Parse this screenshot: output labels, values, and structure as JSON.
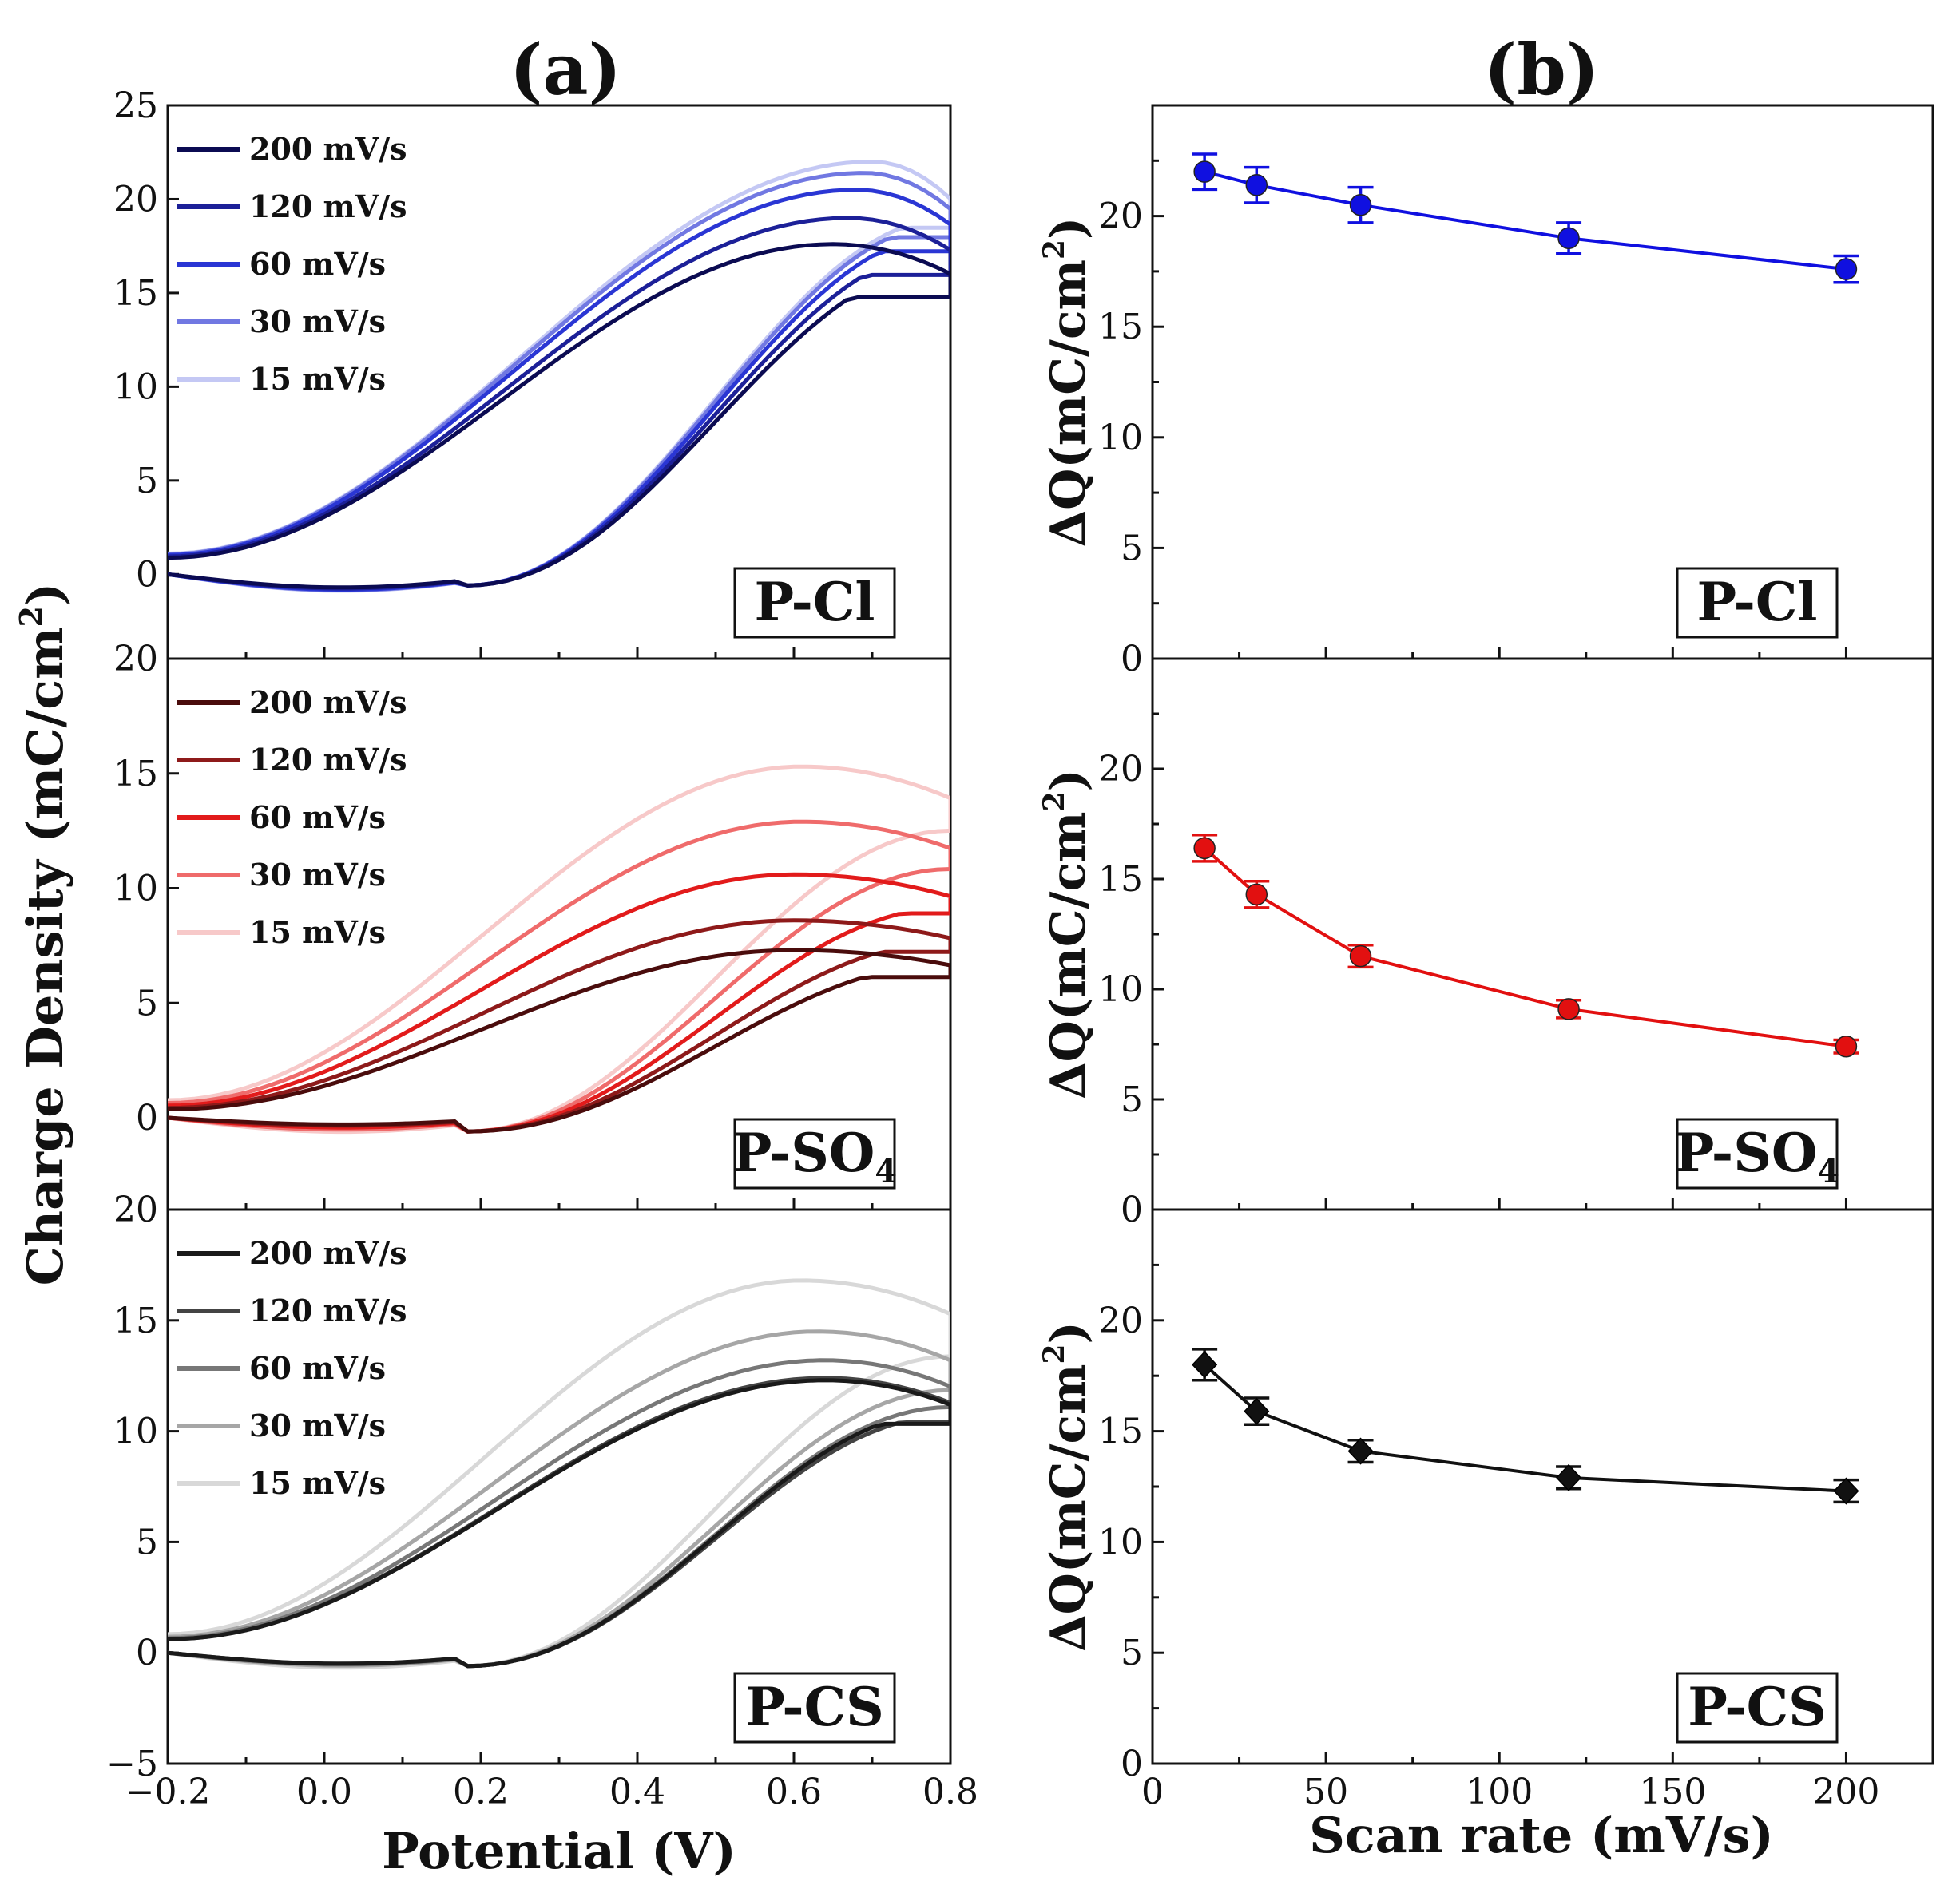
{
  "figure": {
    "panel_a_title": "(a)",
    "panel_b_title": "(b)",
    "a_xlabel": "Potential (V)",
    "a_ylabel": "Charge Density (mC/cm",
    "a_ylabel_sup": "2",
    "a_ylabel_end": ")",
    "b_xlabel": "Scan rate (mV/s)",
    "b_ylabel": "ΔQ(mC/cm",
    "b_ylabel_sup": "2",
    "b_ylabel_end": ")"
  },
  "chart_data": [
    {
      "id": "a1",
      "type": "line",
      "panel": "a",
      "tag": "P-Cl",
      "xlim": [
        -0.2,
        0.8
      ],
      "ylim": [
        -4.5,
        25
      ],
      "yticks": [
        0,
        5,
        10,
        15,
        20,
        25
      ],
      "top_label": "25",
      "bottom_label": "20",
      "x_tick_labels": [],
      "series": [
        {
          "name": "200 mV/s",
          "color": "#0b0b52",
          "anodic_peak": [
            0.65,
            17.6
          ],
          "cathodic_cross": 0.68
        },
        {
          "name": "120 mV/s",
          "color": "#1c2098",
          "anodic_peak": [
            0.67,
            19.0
          ],
          "cathodic_cross": 0.7
        },
        {
          "name": "60 mV/s",
          "color": "#2a36d4",
          "anodic_peak": [
            0.68,
            20.5
          ],
          "cathodic_cross": 0.72
        },
        {
          "name": "30 mV/s",
          "color": "#7178e2",
          "anodic_peak": [
            0.69,
            21.4
          ],
          "cathodic_cross": 0.73
        },
        {
          "name": "15 mV/s",
          "color": "#c4c8f4",
          "anodic_peak": [
            0.7,
            22.0
          ],
          "cathodic_cross": 0.74
        }
      ]
    },
    {
      "id": "a2",
      "type": "line",
      "panel": "a",
      "tag": "P-SO",
      "tag_sub": "4",
      "xlim": [
        -0.2,
        0.8
      ],
      "ylim": [
        -4.0,
        20
      ],
      "yticks": [
        0,
        5,
        10,
        15
      ],
      "top_label": "20",
      "bottom_label": "20",
      "x_tick_labels": [],
      "series": [
        {
          "name": "200 mV/s",
          "color": "#4a0c0c",
          "anodic_peak": [
            0.6,
            7.3
          ],
          "cathodic_cross": 0.7
        },
        {
          "name": "120 mV/s",
          "color": "#8e1a1a",
          "anodic_peak": [
            0.6,
            8.6
          ],
          "cathodic_cross": 0.72
        },
        {
          "name": "60 mV/s",
          "color": "#e21b1b",
          "anodic_peak": [
            0.6,
            10.6
          ],
          "cathodic_cross": 0.74
        },
        {
          "name": "30 mV/s",
          "color": "#ef6b6b",
          "anodic_peak": [
            0.61,
            12.9
          ],
          "cathodic_cross": 0.76
        },
        {
          "name": "15 mV/s",
          "color": "#f7c9c9",
          "anodic_peak": [
            0.61,
            15.3
          ],
          "cathodic_cross": 0.78
        }
      ]
    },
    {
      "id": "a3",
      "type": "line",
      "panel": "a",
      "tag": "P-CS",
      "xlim": [
        -0.2,
        0.8
      ],
      "ylim": [
        -5,
        20
      ],
      "yticks": [
        -5,
        0,
        5,
        10,
        15
      ],
      "top_label": "20",
      "bottom_label": "",
      "x_tick_labels": [
        "−0.2",
        "0.0",
        "0.2",
        "0.4",
        "0.6",
        "0.8"
      ],
      "x_tick_values": [
        -0.2,
        0.0,
        0.2,
        0.4,
        0.6,
        0.8
      ],
      "series": [
        {
          "name": "200 mV/s",
          "color": "#1a1a1a",
          "anodic_peak": [
            0.64,
            12.3
          ],
          "cathodic_cross": 0.72
        },
        {
          "name": "120 mV/s",
          "color": "#444444",
          "anodic_peak": [
            0.64,
            12.4
          ],
          "cathodic_cross": 0.74
        },
        {
          "name": "60 mV/s",
          "color": "#777777",
          "anodic_peak": [
            0.64,
            13.2
          ],
          "cathodic_cross": 0.76
        },
        {
          "name": "30 mV/s",
          "color": "#a6a6a6",
          "anodic_peak": [
            0.63,
            14.5
          ],
          "cathodic_cross": 0.78
        },
        {
          "name": "15 mV/s",
          "color": "#d8d8d8",
          "anodic_peak": [
            0.61,
            16.8
          ],
          "cathodic_cross": 0.8
        }
      ]
    },
    {
      "id": "b1",
      "type": "scatter",
      "panel": "b",
      "tag": "P-Cl",
      "xlim": [
        0,
        225
      ],
      "ylim": [
        0,
        25
      ],
      "yticks": [
        0,
        5,
        10,
        15,
        20
      ],
      "x_tick_labels": [],
      "color": "#1010e0",
      "marker": "circle",
      "x": [
        15,
        30,
        60,
        120,
        200
      ],
      "y": [
        22.0,
        21.4,
        20.5,
        19.0,
        17.6
      ],
      "err": [
        0.8,
        0.8,
        0.8,
        0.7,
        0.6
      ]
    },
    {
      "id": "b2",
      "type": "scatter",
      "panel": "b",
      "tag": "P-SO",
      "tag_sub": "4",
      "xlim": [
        0,
        225
      ],
      "ylim": [
        0,
        25
      ],
      "yticks": [
        0,
        5,
        10,
        15,
        20
      ],
      "x_tick_labels": [],
      "color": "#e21010",
      "marker": "circle",
      "x": [
        15,
        30,
        60,
        120,
        200
      ],
      "y": [
        16.4,
        14.3,
        11.5,
        9.1,
        7.4
      ],
      "err": [
        0.6,
        0.6,
        0.5,
        0.4,
        0.3
      ]
    },
    {
      "id": "b3",
      "type": "scatter",
      "panel": "b",
      "tag": "P-CS",
      "xlim": [
        0,
        225
      ],
      "ylim": [
        0,
        25
      ],
      "yticks": [
        0,
        5,
        10,
        15,
        20
      ],
      "x_tick_labels": [
        "0",
        "50",
        "100",
        "150",
        "200"
      ],
      "x_tick_values": [
        0,
        50,
        100,
        150,
        200
      ],
      "color": "#111111",
      "marker": "diamond",
      "x": [
        15,
        30,
        60,
        120,
        200
      ],
      "y": [
        18.0,
        15.9,
        14.1,
        12.9,
        12.3
      ],
      "err": [
        0.7,
        0.6,
        0.5,
        0.5,
        0.5
      ]
    }
  ]
}
